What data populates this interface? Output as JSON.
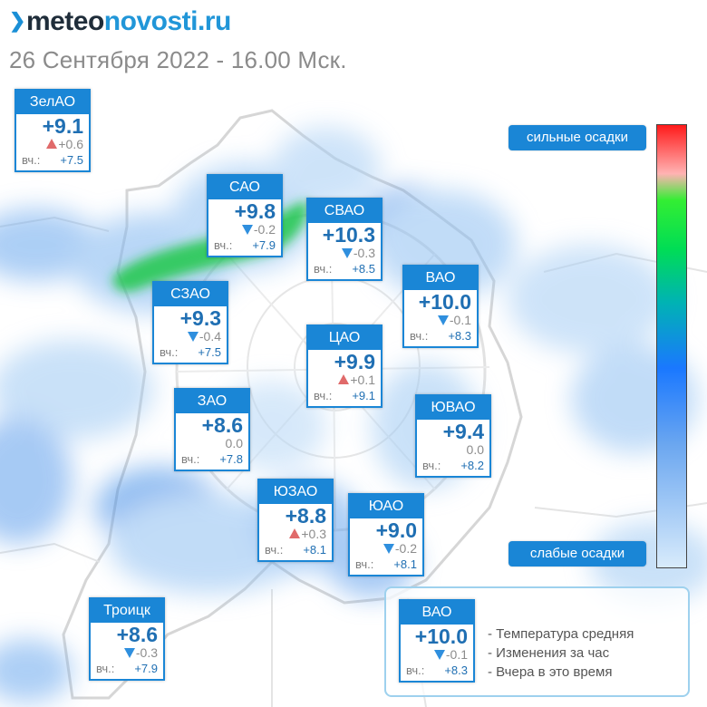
{
  "header": {
    "logo_prefix": "meteo",
    "logo_suffix": "novosti.ru",
    "date": "26 Сентября 2022 - 16.00 Мск."
  },
  "districts": [
    {
      "name": "ЗелАО",
      "temp": "+9.1",
      "trend": "up",
      "change": "+0.6",
      "yesterday_label": "вч.:",
      "yesterday": "+7.5"
    },
    {
      "name": "САО",
      "temp": "+9.8",
      "trend": "down",
      "change": "-0.2",
      "yesterday_label": "вч.:",
      "yesterday": "+7.9"
    },
    {
      "name": "СВАО",
      "temp": "+10.3",
      "trend": "down",
      "change": "-0.3",
      "yesterday_label": "вч.:",
      "yesterday": "+8.5"
    },
    {
      "name": "ВАО",
      "temp": "+10.0",
      "trend": "down",
      "change": "-0.1",
      "yesterday_label": "вч.:",
      "yesterday": "+8.3"
    },
    {
      "name": "СЗАО",
      "temp": "+9.3",
      "trend": "down",
      "change": "-0.4",
      "yesterday_label": "вч.:",
      "yesterday": "+7.5"
    },
    {
      "name": "ЦАО",
      "temp": "+9.9",
      "trend": "up",
      "change": "+0.1",
      "yesterday_label": "вч.:",
      "yesterday": "+9.1"
    },
    {
      "name": "ЗАО",
      "temp": "+8.6",
      "trend": "none",
      "change": "0.0",
      "yesterday_label": "вч.:",
      "yesterday": "+7.8"
    },
    {
      "name": "ЮВАО",
      "temp": "+9.4",
      "trend": "none",
      "change": "0.0",
      "yesterday_label": "вч.:",
      "yesterday": "+8.2"
    },
    {
      "name": "ЮЗАО",
      "temp": "+8.8",
      "trend": "up",
      "change": "+0.3",
      "yesterday_label": "вч.:",
      "yesterday": "+8.1"
    },
    {
      "name": "ЮАО",
      "temp": "+9.0",
      "trend": "down",
      "change": "-0.2",
      "yesterday_label": "вч.:",
      "yesterday": "+8.1"
    },
    {
      "name": "Троицк",
      "temp": "+8.6",
      "trend": "down",
      "change": "-0.3",
      "yesterday_label": "вч.:",
      "yesterday": "+7.9"
    }
  ],
  "scale": {
    "strong_label": "сильные осадки",
    "weak_label": "слабые осадки"
  },
  "legend": {
    "sample": {
      "name": "ВАО",
      "temp": "+10.0",
      "trend": "down",
      "change": "-0.1",
      "yesterday_label": "вч.:",
      "yesterday": "+8.3"
    },
    "line1": "- Температура средняя",
    "line2": "- Изменения за час",
    "line3": "- Вчера в это время"
  },
  "colors": {
    "accent": "#1a86d6",
    "trend_down": "#2f8fde",
    "trend_up": "#e06a6a",
    "temp_text": "#1f6fb3"
  }
}
